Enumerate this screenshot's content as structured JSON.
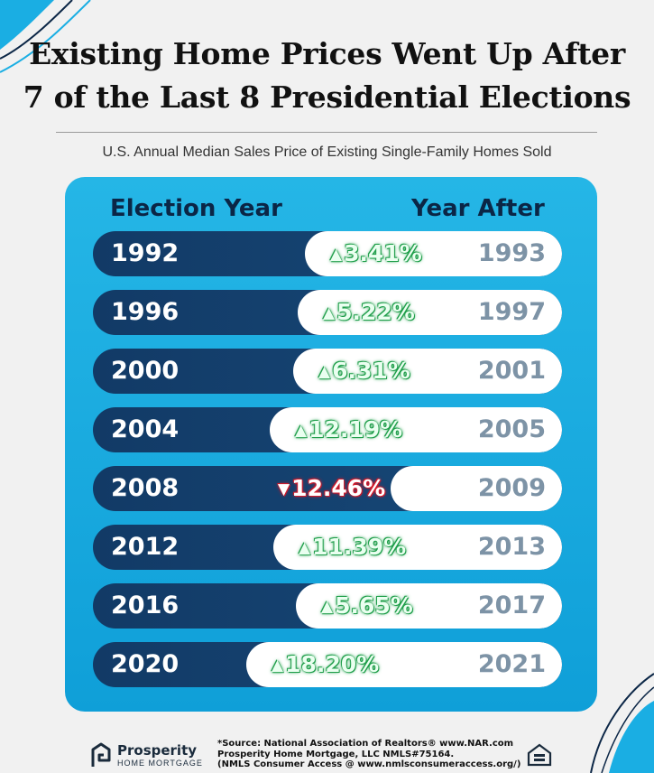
{
  "title_line1": "Existing Home Prices Went Up After",
  "title_line2": "7 of the Last 8 Presidential Elections",
  "subtitle": "U.S. Annual Median Sales Price of Existing Single-Family Homes Sold",
  "col_left": "Election Year",
  "col_right": "Year After",
  "colors": {
    "card": "#1aaee3",
    "row_dark": "#123a66",
    "up": "#1f9e4a",
    "down": "#d21b2b",
    "year_after": "#7d93a6"
  },
  "chart_data": {
    "type": "table",
    "title": "Existing Home Prices Went Up After 7 of the Last 8 Presidential Elections",
    "subtitle": "U.S. Annual Median Sales Price of Existing Single-Family Homes Sold",
    "columns": [
      "Election Year",
      "Year After"
    ],
    "rows": [
      {
        "election": "1992",
        "after": "1993",
        "change": "3.41%",
        "direction": "up",
        "value": 3.41
      },
      {
        "election": "1996",
        "after": "1997",
        "change": "5.22%",
        "direction": "up",
        "value": 5.22
      },
      {
        "election": "2000",
        "after": "2001",
        "change": "6.31%",
        "direction": "up",
        "value": 6.31
      },
      {
        "election": "2004",
        "after": "2005",
        "change": "12.19%",
        "direction": "up",
        "value": 12.19
      },
      {
        "election": "2008",
        "after": "2009",
        "change": "12.46%",
        "direction": "down",
        "value": -12.46
      },
      {
        "election": "2012",
        "after": "2013",
        "change": "11.39%",
        "direction": "up",
        "value": 11.39
      },
      {
        "election": "2016",
        "after": "2017",
        "change": "5.65%",
        "direction": "up",
        "value": 5.65
      },
      {
        "election": "2020",
        "after": "2021",
        "change": "18.20%",
        "direction": "up",
        "value": 18.2
      }
    ]
  },
  "footer": {
    "brand": "Prosperity",
    "brand_sub": "HOME MORTGAGE",
    "source_line1": "*Source: National Association of Realtors® www.NAR.com",
    "source_line2": "Prosperity Home Mortgage, LLC NMLS#75164.",
    "source_line3": "(NMLS Consumer Access @ www.nmlsconsumeraccess.org/)",
    "equal_housing_icon": "equal-housing-lender-icon"
  }
}
